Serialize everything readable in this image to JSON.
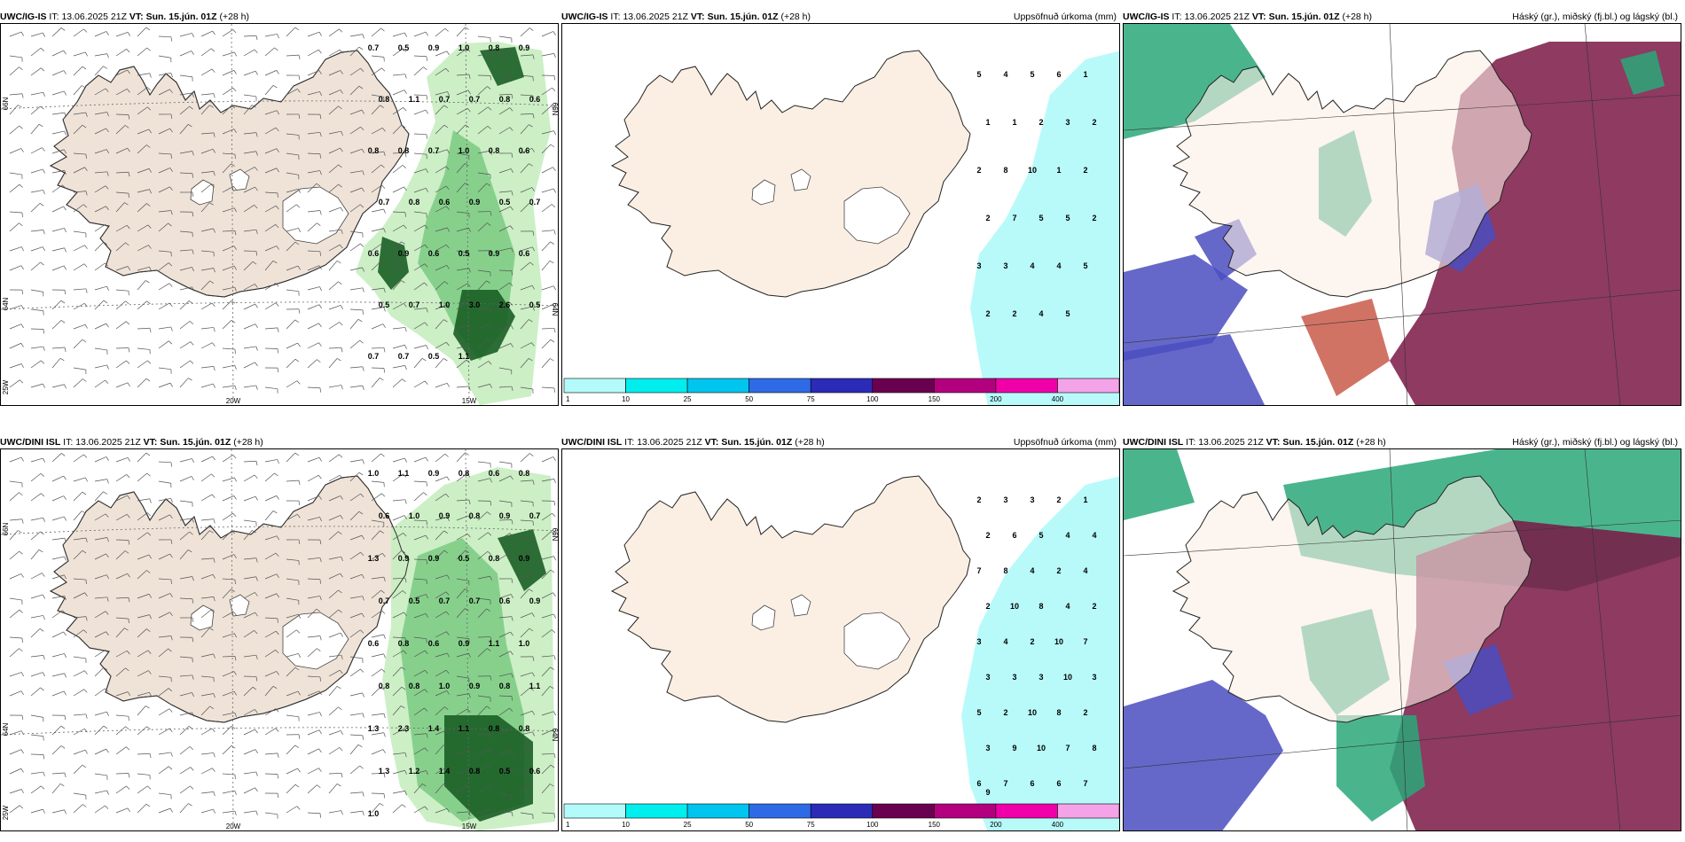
{
  "panels": [
    {
      "model_code": "UWC/IG-IS",
      "it_label": "IT:",
      "it_value": "13.06.2025 21Z",
      "vt_label": "VT:",
      "vt_value": "Sun. 15.jún. 01Z",
      "lead": "(+28 h)",
      "right_title": "",
      "kind": "precip-rate",
      "axis_labels": [
        "20W",
        "15W",
        "66N",
        "64N",
        "25W"
      ],
      "values": [
        "0.7",
        "0.5",
        "0.9",
        "1.0",
        "0.8",
        "0.9",
        "0.8",
        "1.1",
        "0.7",
        "0.7",
        "0.8",
        "0.6",
        "0.8",
        "0.8",
        "0.7",
        "1.0",
        "0.8",
        "0.6",
        "0.7",
        "0.8",
        "0.6",
        "0.9",
        "0.5",
        "0.7",
        "0.6",
        "0.9",
        "0.6",
        "0.5",
        "0.9",
        "0.6",
        "0.5",
        "0.7",
        "1.0",
        "3.0",
        "2.6",
        "0.5",
        "0.7",
        "0.7",
        "0.5",
        "1.1"
      ]
    },
    {
      "model_code": "UWC/IG-IS",
      "it_label": "IT:",
      "it_value": "13.06.2025 21Z",
      "vt_label": "VT:",
      "vt_value": "Sun. 15.jún. 01Z",
      "lead": "(+28 h)",
      "right_title": "Uppsöfnuð úrkoma (mm)",
      "kind": "accum",
      "values": [
        "5",
        "4",
        "5",
        "6",
        "1",
        "1",
        "1",
        "2",
        "3",
        "2",
        "2",
        "8",
        "10",
        "1",
        "2",
        "2",
        "7",
        "5",
        "5",
        "2",
        "3",
        "3",
        "4",
        "4",
        "5",
        "2",
        "2",
        "4",
        "5"
      ]
    },
    {
      "model_code": "UWC/IG-IS",
      "it_label": "IT:",
      "it_value": "13.06.2025 21Z",
      "vt_label": "VT:",
      "vt_value": "Sun. 15.jún. 01Z",
      "lead": "(+28 h)",
      "right_title": "Háský (gr.), miðský (fj.bl.) og lágský (bl.)",
      "kind": "clouds"
    },
    {
      "model_code": "UWC/DINI ISL",
      "it_label": "IT:",
      "it_value": "13.06.2025 21Z",
      "vt_label": "VT:",
      "vt_value": "Sun. 15.jún. 01Z",
      "lead": "(+28 h)",
      "right_title": "",
      "kind": "precip-rate",
      "axis_labels": [
        "20W",
        "15W",
        "66N",
        "64N",
        "25W"
      ],
      "values": [
        "1.0",
        "1.1",
        "0.9",
        "0.8",
        "0.6",
        "0.8",
        "0.6",
        "1.0",
        "0.9",
        "0.8",
        "0.9",
        "0.7",
        "1.3",
        "0.9",
        "0.9",
        "0.5",
        "0.8",
        "0.9",
        "0.7",
        "0.5",
        "0.7",
        "0.7",
        "0.6",
        "0.9",
        "0.6",
        "0.8",
        "0.6",
        "0.9",
        "1.1",
        "1.0",
        "0.8",
        "0.8",
        "1.0",
        "0.9",
        "0.8",
        "1.1",
        "1.3",
        "2.3",
        "1.4",
        "1.1",
        "0.8",
        "0.8",
        "1.3",
        "1.2",
        "1.4",
        "0.8",
        "0.5",
        "0.6",
        "1.0"
      ]
    },
    {
      "model_code": "UWC/DINI ISL",
      "it_label": "IT:",
      "it_value": "13.06.2025 21Z",
      "vt_label": "VT:",
      "vt_value": "Sun. 15.jún. 01Z",
      "lead": "(+28 h)",
      "right_title": "Uppsöfnuð úrkoma (mm)",
      "kind": "accum",
      "values": [
        "2",
        "3",
        "3",
        "2",
        "1",
        "2",
        "6",
        "5",
        "4",
        "4",
        "7",
        "8",
        "4",
        "2",
        "4",
        "2",
        "10",
        "8",
        "4",
        "2",
        "3",
        "4",
        "2",
        "10",
        "7",
        "3",
        "3",
        "3",
        "10",
        "3",
        "5",
        "2",
        "10",
        "8",
        "2",
        "3",
        "9",
        "10",
        "7",
        "8",
        "6",
        "7",
        "6",
        "6",
        "7",
        "9"
      ]
    },
    {
      "model_code": "UWC/DINI ISL",
      "it_label": "IT:",
      "it_value": "13.06.2025 21Z",
      "vt_label": "VT:",
      "vt_value": "Sun. 15.jún. 01Z",
      "lead": "(+28 h)",
      "right_title": "Háský (gr.), miðský (fj.bl.) og lágský (bl.)",
      "kind": "clouds"
    }
  ],
  "colorbar": {
    "ticks": [
      "1",
      "10",
      "25",
      "50",
      "75",
      "100",
      "150",
      "200",
      "400"
    ],
    "colors": [
      "#b3fbfb",
      "#00eeee",
      "#00c5ee",
      "#2f6ae6",
      "#2b2bb8",
      "#6a0050",
      "#b3007f",
      "#f000a8",
      "#f5a3e8"
    ]
  },
  "colors": {
    "land": "#efe3d7",
    "accum_land": "#fbefe4",
    "precip_light": "#c6edc0",
    "precip_mid": "#7fcc85",
    "precip_dark": "#1a5e25",
    "accum_sea": "#b8fafa",
    "cloud_high": "#2aa879",
    "cloud_mid": "#7a1845",
    "cloud_low": "#4a4ec0"
  }
}
